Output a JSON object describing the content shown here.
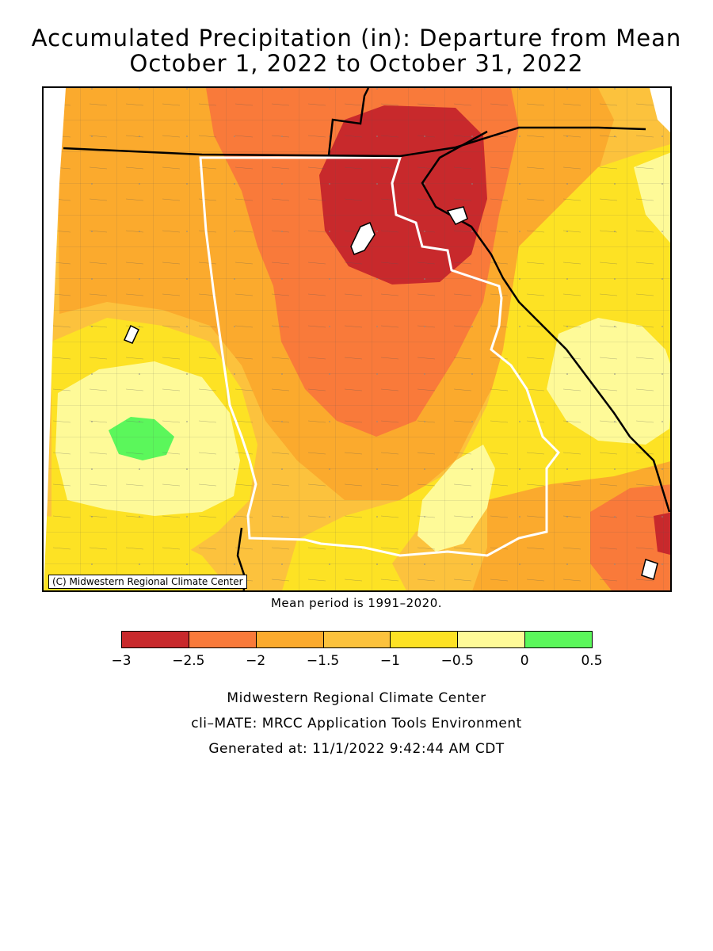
{
  "title": {
    "line1": "Accumulated Precipitation (in): Departure from Mean",
    "line2": "October 1, 2022 to October 31, 2022"
  },
  "map": {
    "copyright": "(C) Midwestern Regional Climate Center",
    "colors": {
      "lt_m2_5": "#c8292c",
      "m2_5_m2": "#f97a3a",
      "m2_m1_5": "#fbaa2d",
      "m1_5_m1": "#fcc23d",
      "m1_m0_5": "#fde224",
      "m0_5_0": "#fefa98",
      "0_0_5": "#5bf75b"
    }
  },
  "mean_note": "Mean period is 1991–2020.",
  "legend": {
    "bins": [
      {
        "color": "#c8292c"
      },
      {
        "color": "#f97a3a"
      },
      {
        "color": "#fbaa2d"
      },
      {
        "color": "#fcc23d"
      },
      {
        "color": "#fde224"
      },
      {
        "color": "#fefa98"
      },
      {
        "color": "#5bf75b"
      }
    ],
    "ticks": [
      "−3",
      "−2.5",
      "−2",
      "−1.5",
      "−1",
      "−0.5",
      "0",
      "0.5"
    ]
  },
  "footer": {
    "line1": "Midwestern Regional Climate Center",
    "line2": "cli–MATE: MRCC Application Tools Environment",
    "line3": "Generated at: 11/1/2022 9:42:44 AM CDT"
  }
}
